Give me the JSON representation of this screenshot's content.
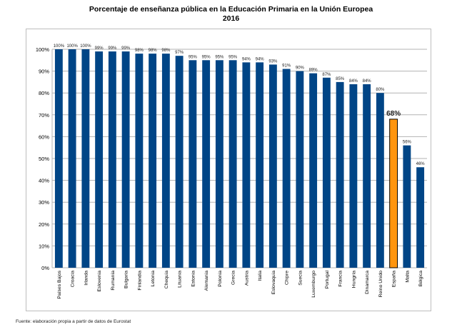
{
  "chart_data": {
    "type": "bar",
    "title": "Porcentaje de enseñanza pública en la Educación Primaria en la Unión Europea",
    "subtitle": "2016",
    "xlabel": "",
    "ylabel": "",
    "ylim": [
      0,
      100
    ],
    "yticks": [
      "0%",
      "10%",
      "20%",
      "30%",
      "40%",
      "50%",
      "60%",
      "70%",
      "80%",
      "90%",
      "100%"
    ],
    "grid": true,
    "legend": "none",
    "categories": [
      "Países Bajos",
      "Croacia",
      "Irlanda",
      "Eslovenia",
      "Rumanía",
      "Bulgaria",
      "Finlandia",
      "Letonia",
      "Chequia",
      "Lituania",
      "Estonia",
      "Alemania",
      "Polonia",
      "Grecia",
      "Austria",
      "Italia",
      "Eslovaquia",
      "Chipre",
      "Suecia",
      "Luxemburgo",
      "Portugal",
      "Francia",
      "Hungría",
      "Dinamarca",
      "Reino Unido",
      "España",
      "Malta",
      "Bélgica"
    ],
    "values": [
      100,
      100,
      100,
      99,
      99,
      99,
      98,
      98,
      98,
      97,
      95,
      95,
      95,
      95,
      94,
      94,
      93,
      91,
      90,
      89,
      87,
      85,
      84,
      84,
      80,
      68,
      56,
      46
    ],
    "value_labels": [
      "100%",
      "100%",
      "100%",
      "99%",
      "99%",
      "99%",
      "98%",
      "98%",
      "98%",
      "97%",
      "95%",
      "95%",
      "95%",
      "95%",
      "94%",
      "94%",
      "93%",
      "91%",
      "90%",
      "89%",
      "87%",
      "85%",
      "84%",
      "84%",
      "80%",
      "68%",
      "56%",
      "46%"
    ],
    "highlight_index": 25,
    "colors": {
      "bar": "#004586",
      "highlight": "#ff950e",
      "highlight_border": "#000000",
      "grid": "#b3b3b3"
    }
  },
  "footer": {
    "source": "Fuente: elaboración propia a partir de datos de Eurostat"
  }
}
